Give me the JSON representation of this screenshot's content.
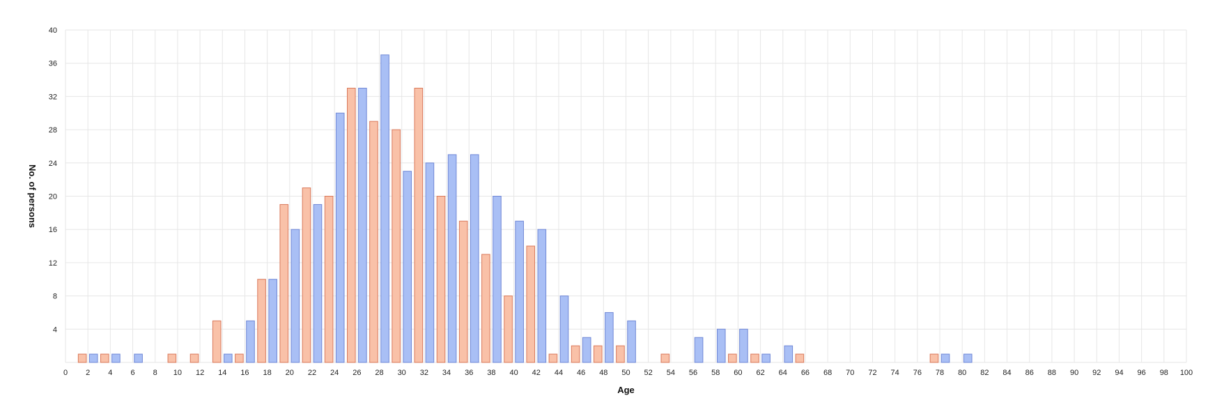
{
  "chart_data": {
    "type": "bar",
    "xlabel": "Age",
    "ylabel": "No. of persons",
    "xlim": [
      0,
      100
    ],
    "ylim": [
      0,
      40
    ],
    "x_ticks": [
      0,
      2,
      4,
      6,
      8,
      10,
      12,
      14,
      16,
      18,
      20,
      22,
      24,
      26,
      28,
      30,
      32,
      34,
      36,
      38,
      40,
      42,
      44,
      46,
      48,
      50,
      52,
      54,
      56,
      58,
      60,
      62,
      64,
      66,
      68,
      70,
      72,
      74,
      76,
      78,
      80,
      82,
      84,
      86,
      88,
      90,
      92,
      94,
      96,
      98,
      100
    ],
    "y_ticks": [
      4,
      8,
      12,
      16,
      20,
      24,
      28,
      32,
      36,
      40
    ],
    "grid": true,
    "legend": "none",
    "series": [
      {
        "color": "#a9bff5",
        "stroke": "#6f87d6",
        "points": [
          {
            "x": 2.5,
            "y": 1
          },
          {
            "x": 4.5,
            "y": 1
          },
          {
            "x": 6.5,
            "y": 1
          },
          {
            "x": 14.5,
            "y": 1
          },
          {
            "x": 16.5,
            "y": 5
          },
          {
            "x": 18.5,
            "y": 10
          },
          {
            "x": 20.5,
            "y": 16
          },
          {
            "x": 22.5,
            "y": 19
          },
          {
            "x": 24.5,
            "y": 30
          },
          {
            "x": 26.5,
            "y": 33
          },
          {
            "x": 28.5,
            "y": 37
          },
          {
            "x": 30.5,
            "y": 23
          },
          {
            "x": 32.5,
            "y": 24
          },
          {
            "x": 34.5,
            "y": 25
          },
          {
            "x": 36.5,
            "y": 25
          },
          {
            "x": 38.5,
            "y": 20
          },
          {
            "x": 40.5,
            "y": 17
          },
          {
            "x": 42.5,
            "y": 16
          },
          {
            "x": 44.5,
            "y": 8
          },
          {
            "x": 46.5,
            "y": 3
          },
          {
            "x": 48.5,
            "y": 6
          },
          {
            "x": 50.5,
            "y": 5
          },
          {
            "x": 56.5,
            "y": 3
          },
          {
            "x": 58.5,
            "y": 4
          },
          {
            "x": 60.5,
            "y": 4
          },
          {
            "x": 62.5,
            "y": 1
          },
          {
            "x": 64.5,
            "y": 2
          },
          {
            "x": 78.5,
            "y": 1
          },
          {
            "x": 80.5,
            "y": 1
          }
        ]
      },
      {
        "color": "#f9c1a8",
        "stroke": "#d9785a",
        "points": [
          {
            "x": 1.5,
            "y": 1
          },
          {
            "x": 3.5,
            "y": 1
          },
          {
            "x": 9.5,
            "y": 1
          },
          {
            "x": 11.5,
            "y": 1
          },
          {
            "x": 13.5,
            "y": 5
          },
          {
            "x": 15.5,
            "y": 1
          },
          {
            "x": 17.5,
            "y": 10
          },
          {
            "x": 19.5,
            "y": 19
          },
          {
            "x": 21.5,
            "y": 21
          },
          {
            "x": 23.5,
            "y": 20
          },
          {
            "x": 25.5,
            "y": 33
          },
          {
            "x": 27.5,
            "y": 29
          },
          {
            "x": 29.5,
            "y": 28
          },
          {
            "x": 31.5,
            "y": 33
          },
          {
            "x": 33.5,
            "y": 20
          },
          {
            "x": 35.5,
            "y": 17
          },
          {
            "x": 37.5,
            "y": 13
          },
          {
            "x": 39.5,
            "y": 8
          },
          {
            "x": 41.5,
            "y": 14
          },
          {
            "x": 43.5,
            "y": 1
          },
          {
            "x": 45.5,
            "y": 2
          },
          {
            "x": 47.5,
            "y": 2
          },
          {
            "x": 49.5,
            "y": 2
          },
          {
            "x": 53.5,
            "y": 1
          },
          {
            "x": 59.5,
            "y": 1
          },
          {
            "x": 61.5,
            "y": 1
          },
          {
            "x": 65.5,
            "y": 1
          },
          {
            "x": 77.5,
            "y": 1
          }
        ]
      }
    ]
  }
}
